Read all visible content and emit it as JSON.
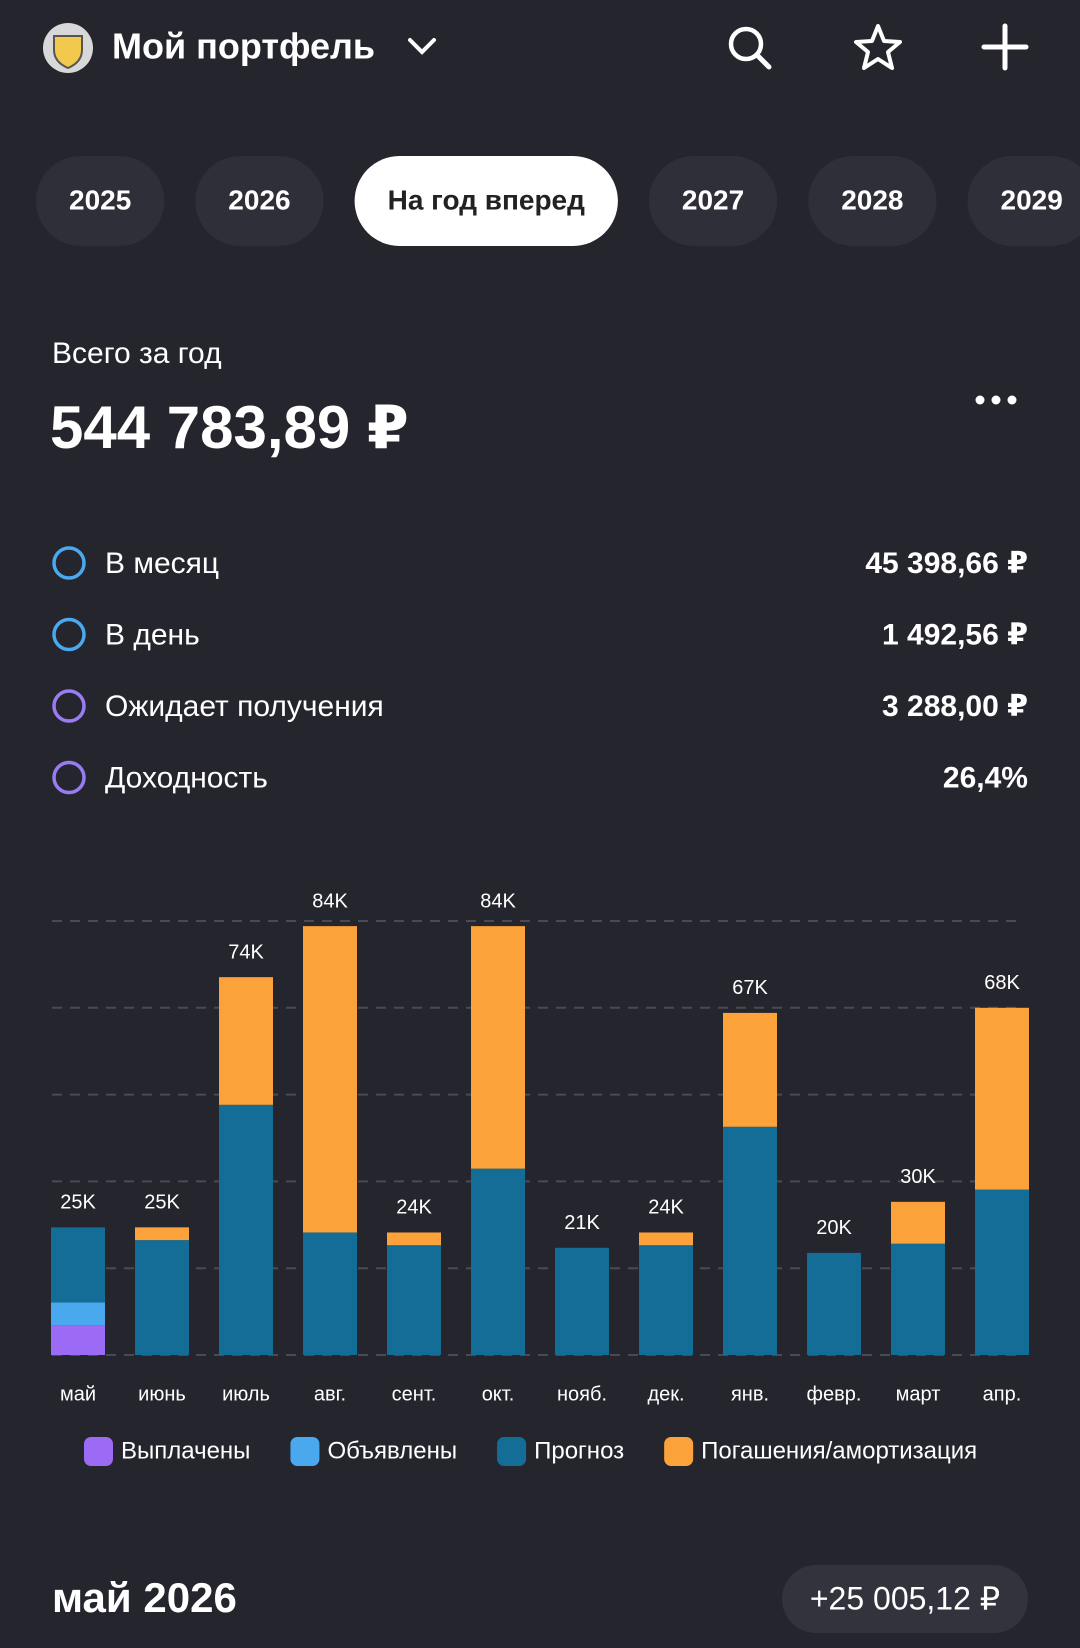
{
  "header": {
    "title": "Мой портфель"
  },
  "tabs": {
    "items": [
      "2025",
      "2026",
      "На год вперед",
      "2027",
      "2028",
      "2029"
    ],
    "active": 2
  },
  "summary": {
    "label": "Всего за год",
    "total": "544 783,89 ₽"
  },
  "stats": [
    {
      "label": "В месяц",
      "value": "45 398,66 ₽",
      "color": "#4aa8ee"
    },
    {
      "label": "В день",
      "value": "1 492,56 ₽",
      "color": "#4aa8ee"
    },
    {
      "label": "Ожидает получения",
      "value": "3 288,00 ₽",
      "color": "#9a7cf2"
    },
    {
      "label": "Доходность",
      "value": "26,4%",
      "color": "#9a7cf2"
    }
  ],
  "chart_data": {
    "type": "stacked_bar",
    "categories": [
      "май",
      "июнь",
      "июль",
      "авг.",
      "сент.",
      "окт.",
      "нояб.",
      "дек.",
      "янв.",
      "февр.",
      "март",
      "апр."
    ],
    "series": [
      {
        "name": "Выплачены",
        "color": "#9b6bf5",
        "values": [
          5800,
          0,
          0,
          0,
          0,
          0,
          0,
          0,
          0,
          0,
          0,
          0
        ]
      },
      {
        "name": "Объявлены",
        "color": "#4aa8ee",
        "values": [
          4500,
          0,
          0,
          0,
          0,
          0,
          0,
          0,
          0,
          0,
          0,
          0
        ]
      },
      {
        "name": "Прогноз",
        "color": "#146d96",
        "values": [
          14700,
          22500,
          49000,
          24000,
          21500,
          36500,
          21000,
          21500,
          44700,
          20000,
          21800,
          32400
        ]
      },
      {
        "name": "Погашения/амортизация",
        "color": "#fba23a",
        "values": [
          0,
          2500,
          25000,
          60000,
          2500,
          47500,
          0,
          2500,
          22300,
          0,
          8200,
          35600
        ]
      }
    ],
    "total_labels": [
      "25K",
      "25K",
      "74K",
      "84K",
      "24K",
      "84K",
      "21K",
      "24K",
      "67K",
      "20K",
      "30K",
      "68K"
    ],
    "ylim": [
      0,
      85000
    ],
    "yticks": [
      0,
      17000,
      34000,
      51000,
      68000,
      85000
    ],
    "grid": true
  },
  "footer": {
    "period": "май 2026",
    "amount": "+25 005,12 ₽"
  }
}
